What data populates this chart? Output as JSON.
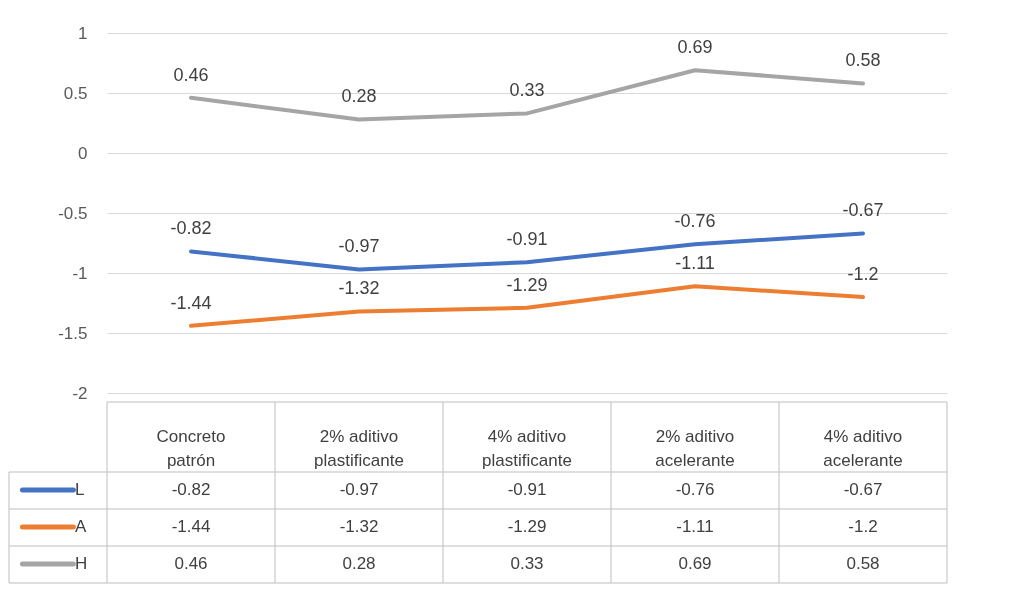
{
  "chart_data": {
    "type": "line",
    "categories": [
      "Concreto patrón",
      "2% aditivo plastificante",
      "4% aditivo plastificante",
      "2% aditivo acelerante",
      "4% aditivo acelerante"
    ],
    "series": [
      {
        "name": "L",
        "color": "#4472c4",
        "values": [
          -0.82,
          -0.97,
          -0.91,
          -0.76,
          -0.67
        ],
        "value_labels": [
          "-0.82",
          "-0.97",
          "-0.91",
          "-0.76",
          "-0.67"
        ]
      },
      {
        "name": "A",
        "color": "#ed7d31",
        "values": [
          -1.44,
          -1.32,
          -1.29,
          -1.11,
          -1.2
        ],
        "value_labels": [
          "-1.44",
          "-1.32",
          "-1.29",
          "-1.11",
          "-1.2"
        ]
      },
      {
        "name": "H",
        "color": "#a5a5a5",
        "values": [
          0.46,
          0.28,
          0.33,
          0.69,
          0.58
        ],
        "value_labels": [
          "0.46",
          "0.28",
          "0.33",
          "0.69",
          "0.58"
        ]
      }
    ],
    "annotations": [
      "-0.82",
      "-0.97",
      "-0.91",
      "-0.76",
      "-0.67",
      "-1.44",
      "-1.32",
      "-1.29",
      "-1.11",
      "-1.2",
      "0.46",
      "0.28",
      "0.33",
      "0.69",
      "0.58"
    ],
    "ylim": [
      -2,
      1
    ],
    "yticks": [
      -2,
      -1.5,
      -1,
      -0.5,
      0,
      0.5,
      1
    ],
    "grid": "y",
    "legend": "bottom",
    "line_style": "solid"
  }
}
